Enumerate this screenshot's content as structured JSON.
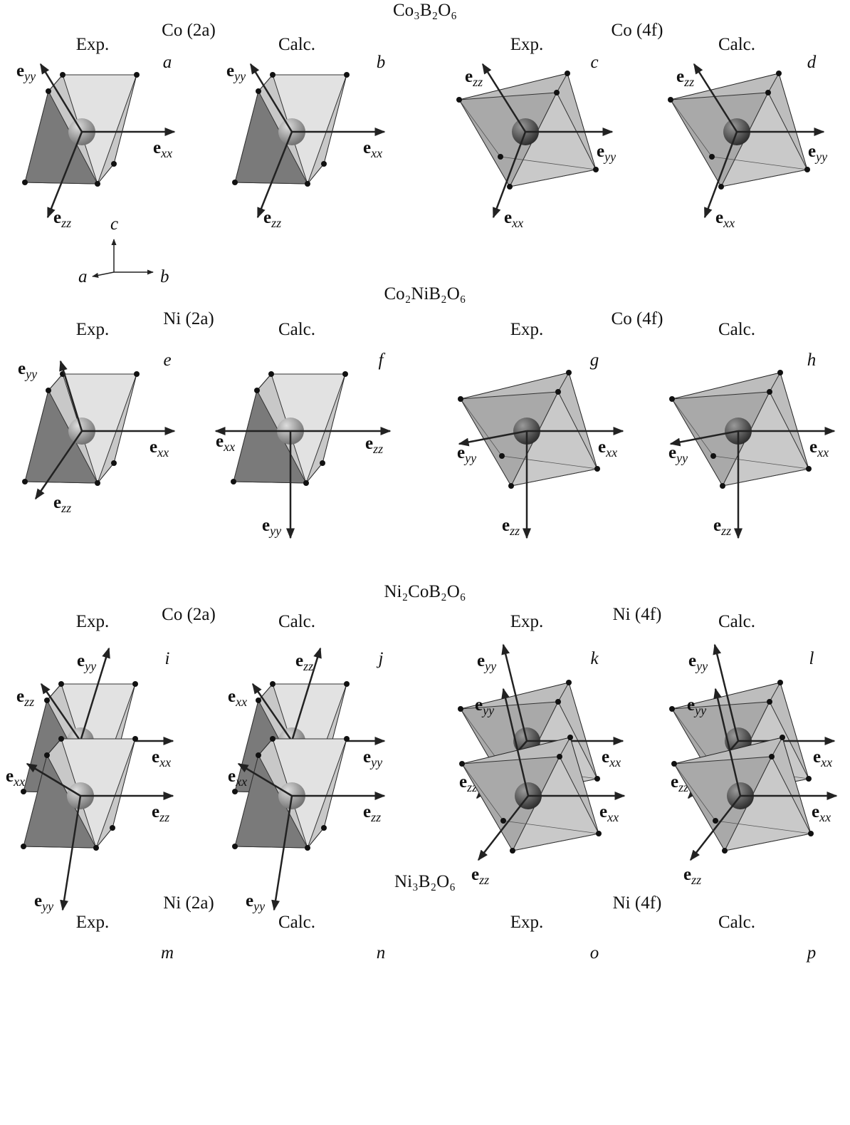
{
  "figure": {
    "rows": [
      {
        "compound": "Co₃B₂O₆",
        "sites": [
          "Co (2a)",
          "Co (4f)"
        ],
        "panels": [
          {
            "column": "Exp.",
            "letter": "a",
            "axes": [
              {
                "symbol": "e",
                "sub": "yy"
              },
              {
                "symbol": "e",
                "sub": "xx"
              },
              {
                "symbol": "e",
                "sub": "zz"
              }
            ]
          },
          {
            "column": "Calc.",
            "letter": "b",
            "axes": [
              {
                "symbol": "e",
                "sub": "yy"
              },
              {
                "symbol": "e",
                "sub": "xx"
              },
              {
                "symbol": "e",
                "sub": "zz"
              }
            ]
          },
          {
            "column": "Exp.",
            "letter": "c",
            "axes": [
              {
                "symbol": "e",
                "sub": "zz"
              },
              {
                "symbol": "e",
                "sub": "yy"
              },
              {
                "symbol": "e",
                "sub": "xx"
              }
            ]
          },
          {
            "column": "Calc.",
            "letter": "d",
            "axes": [
              {
                "symbol": "e",
                "sub": "zz"
              },
              {
                "symbol": "e",
                "sub": "yy"
              },
              {
                "symbol": "e",
                "sub": "xx"
              }
            ]
          }
        ]
      },
      {
        "compound": "Co₂NiB₂O₆",
        "sites": [
          "Ni (2a)",
          "Co (4f)"
        ],
        "panels": [
          {
            "column": "Exp.",
            "letter": "e",
            "axes": [
              {
                "symbol": "e",
                "sub": "yy"
              },
              {
                "symbol": "e",
                "sub": "xx"
              },
              {
                "symbol": "e",
                "sub": "zz"
              }
            ]
          },
          {
            "column": "Calc.",
            "letter": "f",
            "axes": [
              {
                "symbol": "e",
                "sub": "xx"
              },
              {
                "symbol": "e",
                "sub": "zz"
              },
              {
                "symbol": "e",
                "sub": "yy"
              }
            ]
          },
          {
            "column": "Exp.",
            "letter": "g",
            "axes": [
              {
                "symbol": "e",
                "sub": "yy"
              },
              {
                "symbol": "e",
                "sub": "xx"
              },
              {
                "symbol": "e",
                "sub": "zz"
              }
            ]
          },
          {
            "column": "Calc.",
            "letter": "h",
            "axes": [
              {
                "symbol": "e",
                "sub": "yy"
              },
              {
                "symbol": "e",
                "sub": "xx"
              },
              {
                "symbol": "e",
                "sub": "zz"
              }
            ]
          }
        ]
      },
      {
        "compound": "Ni₂CoB₂O₆",
        "sites": [
          "Co (2a)",
          "Ni (4f)"
        ],
        "panels": [
          {
            "column": "Exp.",
            "letter": "i",
            "axes": [
              {
                "symbol": "e",
                "sub": "yy"
              },
              {
                "symbol": "e",
                "sub": "zz"
              },
              {
                "symbol": "e",
                "sub": "xx"
              }
            ]
          },
          {
            "column": "Calc.",
            "letter": "j",
            "axes": [
              {
                "symbol": "e",
                "sub": "zz"
              },
              {
                "symbol": "e",
                "sub": "xx"
              },
              {
                "symbol": "e",
                "sub": "yy"
              }
            ]
          },
          {
            "column": "Exp.",
            "letter": "k",
            "axes": [
              {
                "symbol": "e",
                "sub": "yy"
              },
              {
                "symbol": "e",
                "sub": "xx"
              },
              {
                "symbol": "e",
                "sub": "zz"
              }
            ]
          },
          {
            "column": "Calc.",
            "letter": "l",
            "axes": [
              {
                "symbol": "e",
                "sub": "yy"
              },
              {
                "symbol": "e",
                "sub": "xx"
              },
              {
                "symbol": "e",
                "sub": "zz"
              }
            ]
          }
        ]
      },
      {
        "compound": "Ni₃B₂O₆",
        "sites": [
          "Ni (2a)",
          "Ni (4f)"
        ],
        "panels": [
          {
            "column": "Exp.",
            "letter": "m",
            "axes": [
              {
                "symbol": "e",
                "sub": "xx"
              },
              {
                "symbol": "e",
                "sub": "zz"
              },
              {
                "symbol": "e",
                "sub": "yy"
              }
            ]
          },
          {
            "column": "Calc.",
            "letter": "n",
            "axes": [
              {
                "symbol": "e",
                "sub": "xx"
              },
              {
                "symbol": "e",
                "sub": "zz"
              },
              {
                "symbol": "e",
                "sub": "yy"
              }
            ]
          },
          {
            "column": "Exp.",
            "letter": "o",
            "axes": [
              {
                "symbol": "e",
                "sub": "yy"
              },
              {
                "symbol": "e",
                "sub": "xx"
              },
              {
                "symbol": "e",
                "sub": "zz"
              }
            ]
          },
          {
            "column": "Calc.",
            "letter": "p",
            "axes": [
              {
                "symbol": "e",
                "sub": "yy"
              },
              {
                "symbol": "e",
                "sub": "xx"
              },
              {
                "symbol": "e",
                "sub": "zz"
              }
            ]
          }
        ]
      }
    ],
    "crystal_axes": {
      "c": "c",
      "a": "a",
      "b": "b"
    }
  }
}
